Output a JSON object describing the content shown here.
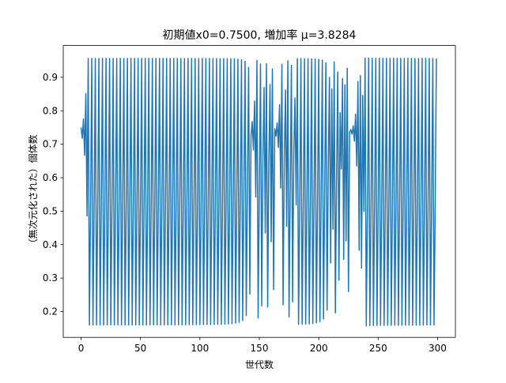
{
  "chart_data": {
    "type": "line",
    "title": "初期値x0=0.7500, 増加率 μ=3.8284",
    "xlabel": "世代数",
    "ylabel": "（無次元化された）個体数",
    "xlim": [
      -15,
      315
    ],
    "ylim": [
      0.123,
      0.995
    ],
    "xticks": [
      0,
      50,
      100,
      150,
      200,
      250,
      300
    ],
    "yticks": [
      0.2,
      0.3,
      0.4,
      0.5,
      0.6,
      0.7,
      0.8,
      0.9
    ],
    "x0": 0.75,
    "mu": 3.8284,
    "n_points": 300,
    "series": [
      {
        "color": "#1f77b4",
        "x_start": 0,
        "x_step": 1
      }
    ]
  }
}
